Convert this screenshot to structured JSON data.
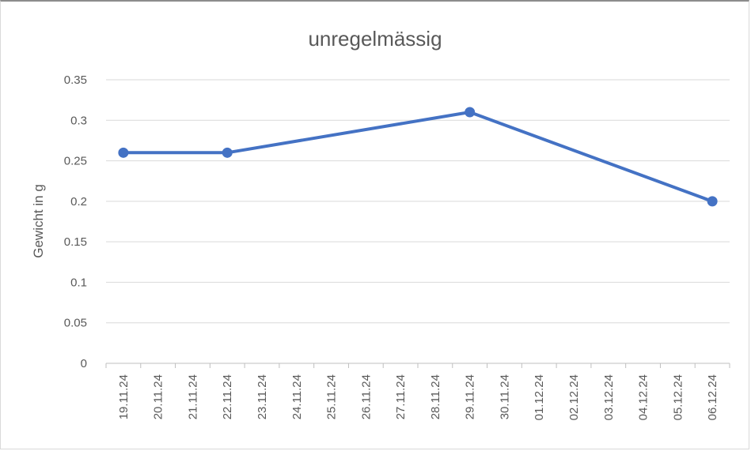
{
  "chart_data": {
    "type": "line",
    "title": "unregelmässig",
    "xlabel": "",
    "ylabel": "Gewicht in g",
    "categories": [
      "19.11.24",
      "20.11.24",
      "21.11.24",
      "22.11.24",
      "23.11.24",
      "24.11.24",
      "25.11.24",
      "26.11.24",
      "27.11.24",
      "28.11.24",
      "29.11.24",
      "30.11.24",
      "01.12.24",
      "02.12.24",
      "03.12.24",
      "04.12.24",
      "05.12.24",
      "06.12.24"
    ],
    "series": [
      {
        "values": [
          0.26,
          null,
          null,
          0.26,
          null,
          null,
          null,
          null,
          null,
          null,
          0.31,
          null,
          null,
          null,
          null,
          null,
          null,
          0.2
        ],
        "color": "#4472c4"
      }
    ],
    "yticks": [
      "0",
      "0.05",
      "0.1",
      "0.15",
      "0.2",
      "0.25",
      "0.3",
      "0.35"
    ],
    "ylim": [
      0,
      0.35
    ],
    "grid": true,
    "legend": "none"
  }
}
